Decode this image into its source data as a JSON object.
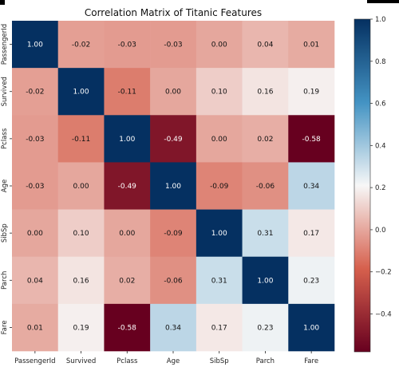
{
  "chart_data": {
    "type": "heatmap",
    "title": "Correlation Matrix of Titanic Features",
    "xlabel": "",
    "ylabel": "",
    "rows": [
      "PassengerId",
      "Survived",
      "Pclass",
      "Age",
      "SibSp",
      "Parch",
      "Fare"
    ],
    "columns": [
      "PassengerId",
      "Survived",
      "Pclass",
      "Age",
      "SibSp",
      "Parch",
      "Fare"
    ],
    "values": [
      [
        1.0,
        -0.02,
        -0.03,
        -0.03,
        0.0,
        0.04,
        0.01
      ],
      [
        -0.02,
        1.0,
        -0.11,
        -0.0,
        0.1,
        0.16,
        0.19
      ],
      [
        -0.03,
        -0.11,
        1.0,
        -0.49,
        0.0,
        0.02,
        -0.58
      ],
      [
        -0.03,
        -0.0,
        -0.49,
        1.0,
        -0.09,
        -0.06,
        0.34
      ],
      [
        0.0,
        0.1,
        0.0,
        -0.09,
        1.0,
        0.31,
        0.17
      ],
      [
        0.04,
        0.16,
        0.02,
        -0.06,
        0.31,
        1.0,
        0.23
      ],
      [
        0.01,
        0.19,
        -0.58,
        0.34,
        0.17,
        0.23,
        1.0
      ]
    ],
    "colorbar": {
      "colormap": "RdBu",
      "vmin": -0.58,
      "vmax": 1.0,
      "ticks": [
        -0.4,
        -0.2,
        0.0,
        0.2,
        0.4,
        0.6,
        0.8,
        1.0
      ],
      "tick_labels": [
        "−0.4",
        "−0.2",
        "0.0",
        "0.2",
        "0.4",
        "0.6",
        "0.8",
        "1.0"
      ]
    },
    "colors": {
      "dark_red": "#67001f",
      "red": "#d6604d",
      "white": "#f7f7f7",
      "blue": "#4393c3",
      "dark_blue": "#053061"
    }
  }
}
